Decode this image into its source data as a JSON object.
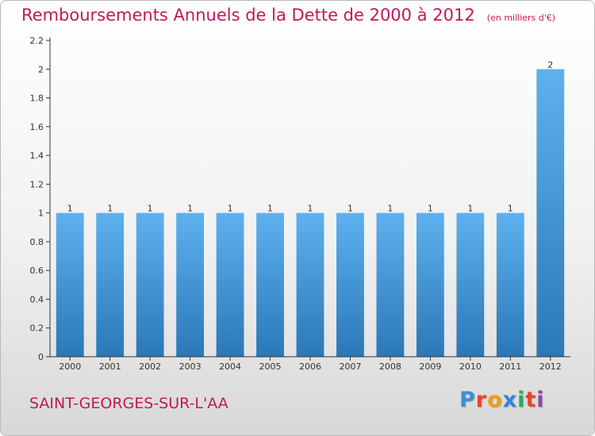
{
  "header": {
    "title": "Remboursements Annuels de la Dette de 2000 à 2012",
    "subtitle": "(en milliers d'€)"
  },
  "footer": {
    "commune": "SAINT-GEORGES-SUR-L'AA",
    "logo": [
      "P",
      "r",
      "o",
      "x",
      "i",
      "t",
      "i"
    ],
    "logo_colors": [
      "#3a8fd8",
      "#e8452c",
      "#f39c12",
      "#2e86de",
      "#27ae60",
      "#e8452c",
      "#8e44ad"
    ]
  },
  "colors": {
    "bar_top": "#5eb1ee",
    "bar_bottom": "#2a78b8",
    "axis": "#333333",
    "grid": "#cccccc",
    "title": "#c2185b"
  },
  "chart_data": {
    "type": "bar",
    "categories": [
      "2000",
      "2001",
      "2002",
      "2003",
      "2004",
      "2005",
      "2006",
      "2007",
      "2008",
      "2009",
      "2010",
      "2011",
      "2012"
    ],
    "values": [
      1,
      1,
      1,
      1,
      1,
      1,
      1,
      1,
      1,
      1,
      1,
      1,
      2
    ],
    "data_labels": [
      "1",
      "1",
      "1",
      "1",
      "1",
      "1",
      "1",
      "1",
      "1",
      "1",
      "1",
      "1",
      "2"
    ],
    "y_ticks": [
      0,
      0.2,
      0.4,
      0.6,
      0.8,
      1,
      1.2,
      1.4,
      1.6,
      1.8,
      2,
      2.2
    ],
    "y_tick_labels": [
      "0",
      "0.2",
      "0.4",
      "0.6",
      "0.8",
      "1",
      "1.2",
      "1.4",
      "1.6",
      "1.8",
      "2",
      "2.2"
    ],
    "ylim": [
      0,
      2.2
    ],
    "title": "Remboursements Annuels de la Dette de 2000 à 2012",
    "xlabel": "",
    "ylabel": "",
    "grid": false,
    "legend": "none"
  }
}
